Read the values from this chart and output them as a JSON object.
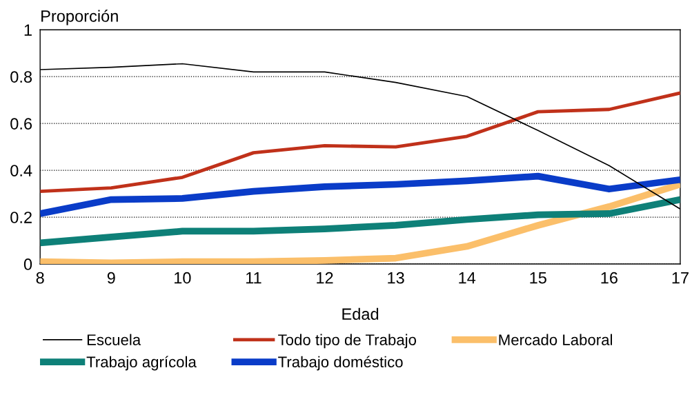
{
  "chart_data": {
    "type": "line",
    "xlabel": "Edad",
    "ylabel": "Proporción",
    "x": [
      8,
      9,
      10,
      11,
      12,
      13,
      14,
      15,
      16,
      17
    ],
    "xlim": [
      8,
      17
    ],
    "xticks": [
      8,
      9,
      10,
      11,
      12,
      13,
      14,
      15,
      16,
      17
    ],
    "ylim": [
      0,
      1
    ],
    "yticks": [
      0,
      0.2,
      0.4,
      0.6,
      0.8,
      1
    ],
    "grid": "y",
    "legend": "bottom",
    "marker": "none",
    "line_style": "solid",
    "series": [
      {
        "name": "Escuela",
        "color": "#000000",
        "values": [
          0.83,
          0.84,
          0.855,
          0.82,
          0.82,
          0.775,
          0.715,
          0.57,
          0.42,
          0.235
        ]
      },
      {
        "name": "Todo tipo de Trabajo",
        "color": "#c0311a",
        "values": [
          0.31,
          0.325,
          0.37,
          0.475,
          0.505,
          0.5,
          0.545,
          0.65,
          0.66,
          0.73
        ]
      },
      {
        "name": "Mercado Laboral",
        "color": "#fbbf6a",
        "values": [
          0.01,
          0.005,
          0.01,
          0.01,
          0.015,
          0.025,
          0.075,
          0.165,
          0.245,
          0.34
        ]
      },
      {
        "name": "Trabajo agrícola",
        "color": "#0e8078",
        "values": [
          0.09,
          0.115,
          0.14,
          0.14,
          0.15,
          0.165,
          0.19,
          0.21,
          0.215,
          0.275
        ]
      },
      {
        "name": "Trabajo doméstico",
        "color": "#0a3cc8",
        "values": [
          0.215,
          0.275,
          0.28,
          0.31,
          0.33,
          0.34,
          0.355,
          0.375,
          0.32,
          0.36
        ]
      }
    ]
  }
}
